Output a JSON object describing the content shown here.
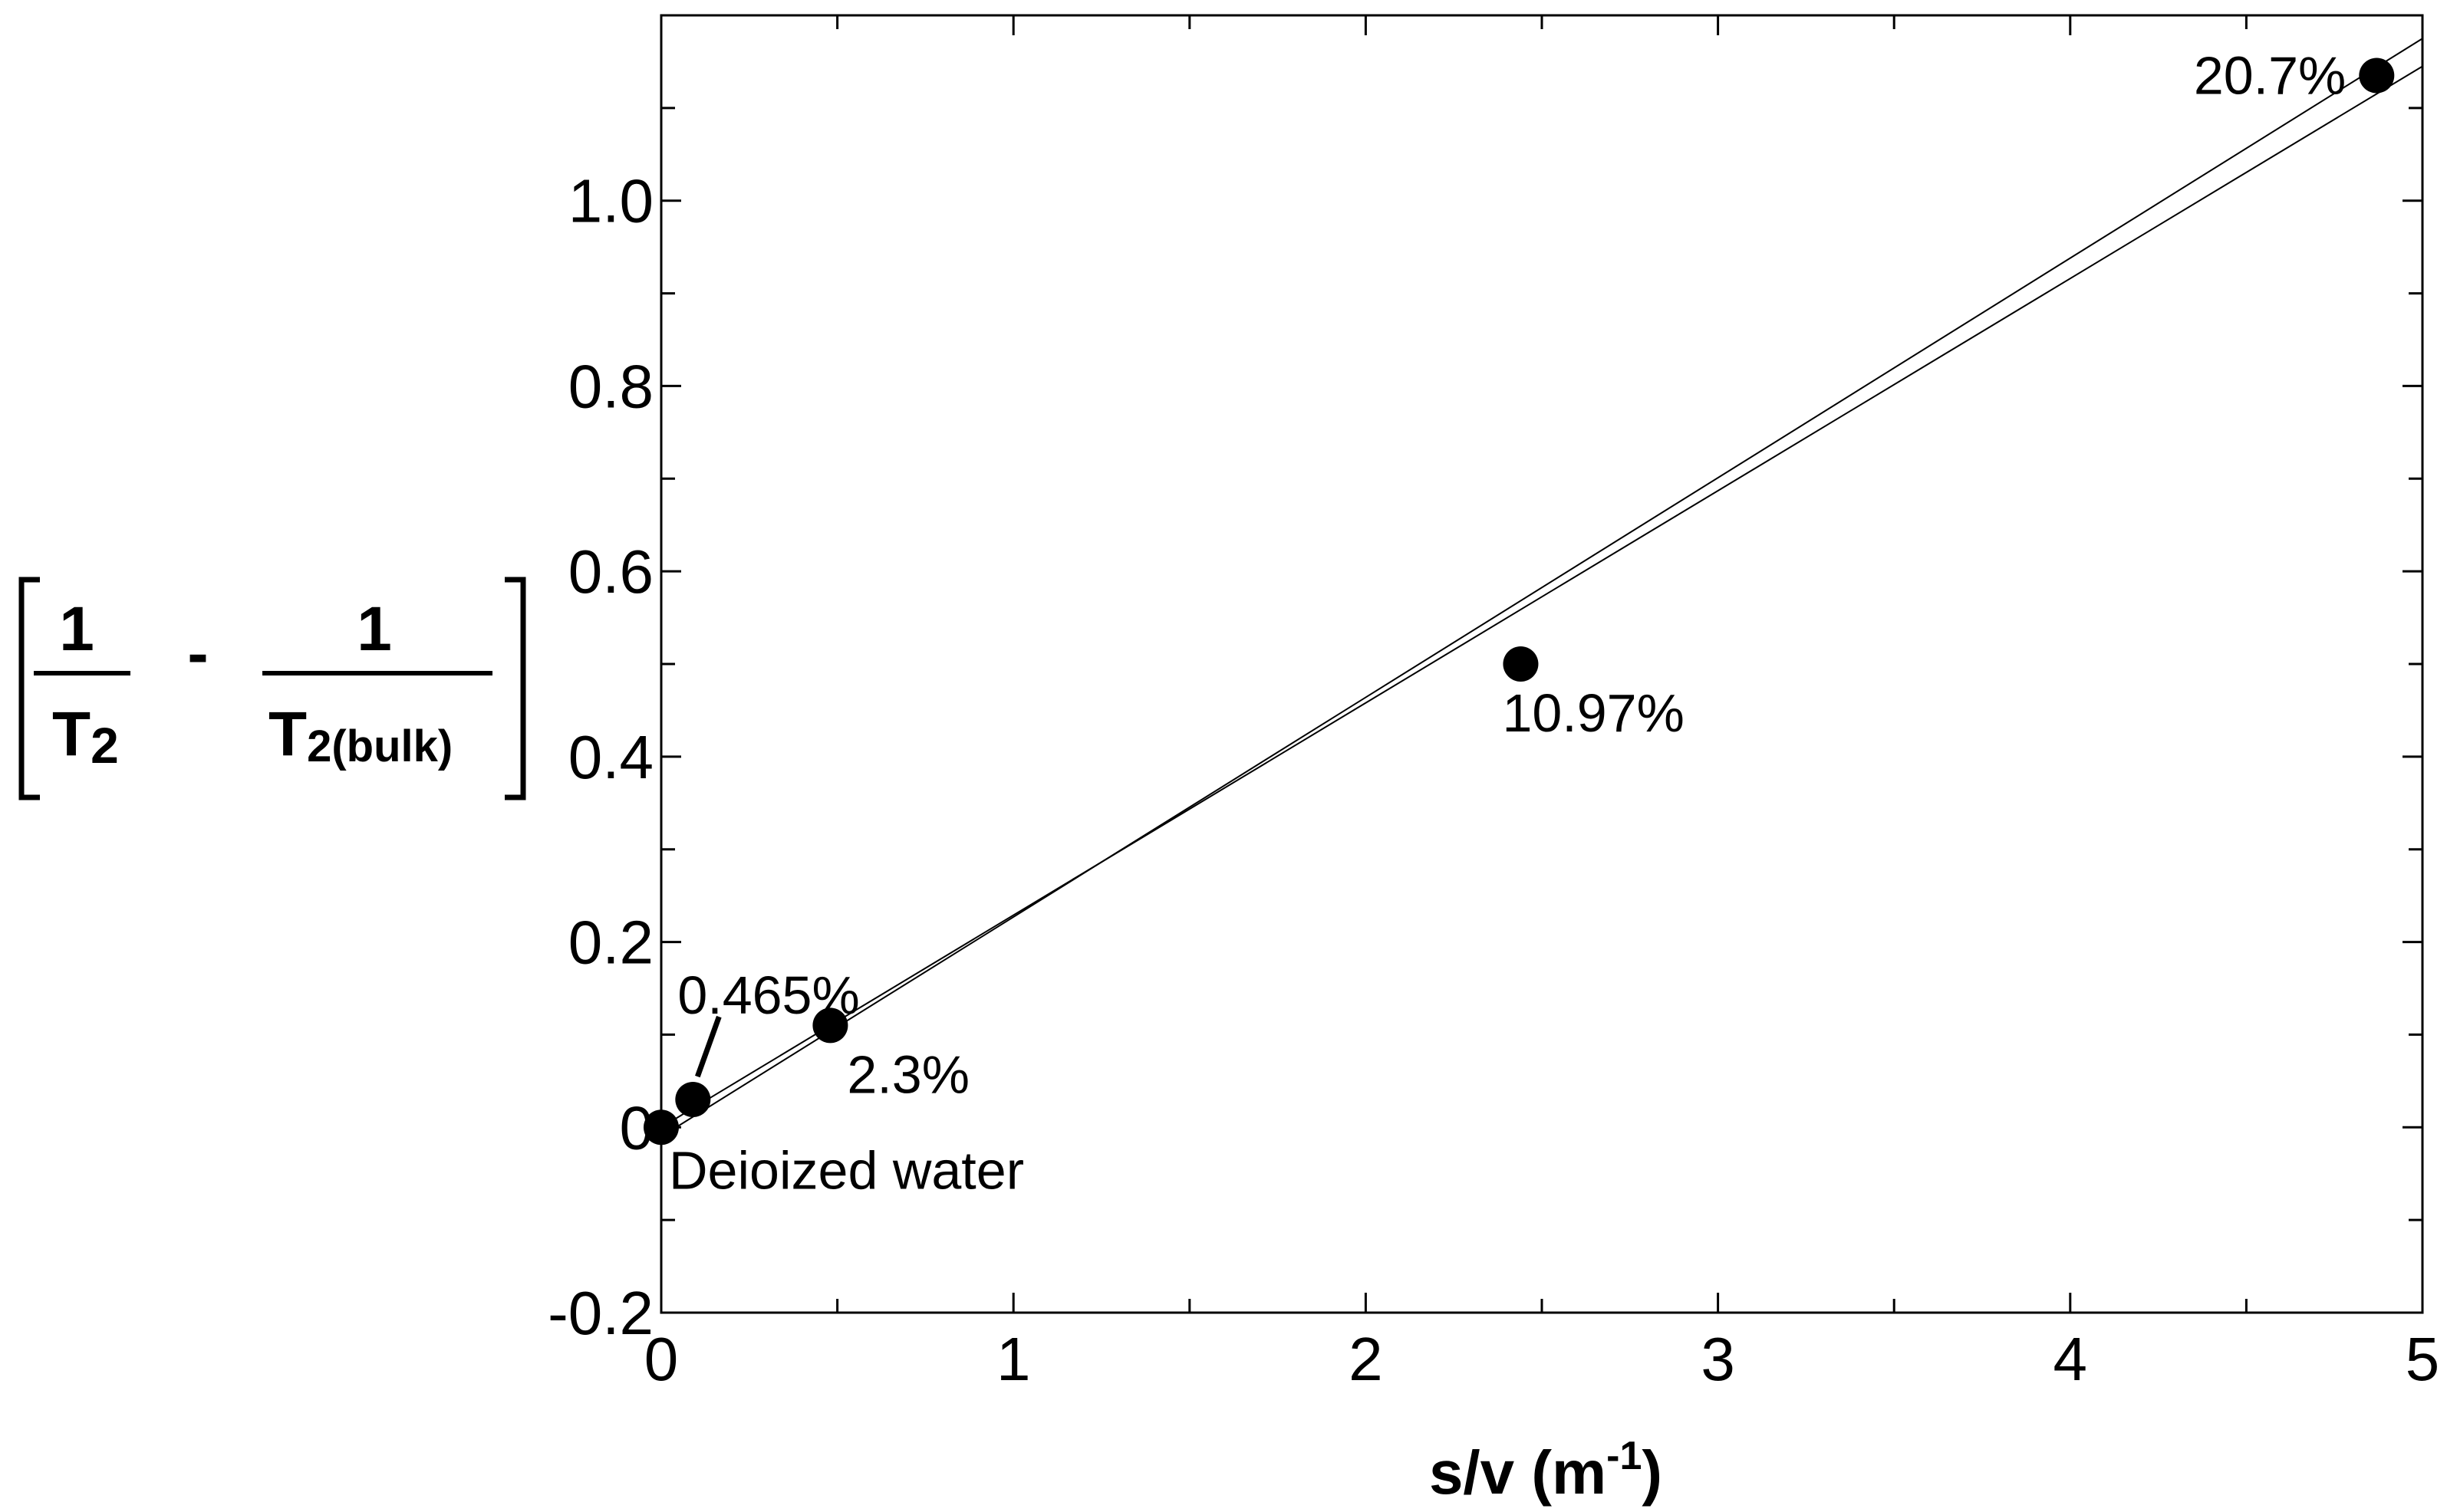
{
  "chart_data": {
    "type": "scatter",
    "title": "",
    "xlabel": {
      "main": "s/v (m",
      "superscript": "-1",
      "close": ")"
    },
    "ylabel": {
      "term1_numerator": "1",
      "term1_denominator": "T",
      "term1_subscript": "2",
      "operator": "-",
      "term2_numerator": "1",
      "term2_denominator": "T",
      "term2_subscript": "2(bulk)"
    },
    "xlim": [
      0,
      5
    ],
    "ylim": [
      -0.2,
      1.2
    ],
    "x_ticks": [
      0,
      1,
      2,
      3,
      4,
      5
    ],
    "x_tick_labels": [
      "0",
      "1",
      "2",
      "3",
      "4",
      "5"
    ],
    "y_ticks": [
      -0.2,
      0,
      0.2,
      0.4,
      0.6,
      0.8,
      1.0
    ],
    "y_tick_labels": [
      "-0.2",
      "0",
      "0.2",
      "0.4",
      "0.6",
      "0.8",
      "1.0"
    ],
    "grid": false,
    "points": [
      {
        "x": 0.0,
        "y": 0.0,
        "label": "Deioized water"
      },
      {
        "x": 0.09,
        "y": 0.03,
        "label": "0.465%"
      },
      {
        "x": 0.48,
        "y": 0.11,
        "label": "2.3%"
      },
      {
        "x": 2.44,
        "y": 0.5,
        "label": "10.97%"
      },
      {
        "x": 4.87,
        "y": 1.135,
        "label": "20.7%"
      }
    ],
    "fit_lines": [
      {
        "x": [
          0.0,
          5.0
        ],
        "y": [
          0.0,
          1.145
        ]
      },
      {
        "x": [
          0.0,
          5.0
        ],
        "y": [
          -0.01,
          1.175
        ]
      }
    ]
  }
}
